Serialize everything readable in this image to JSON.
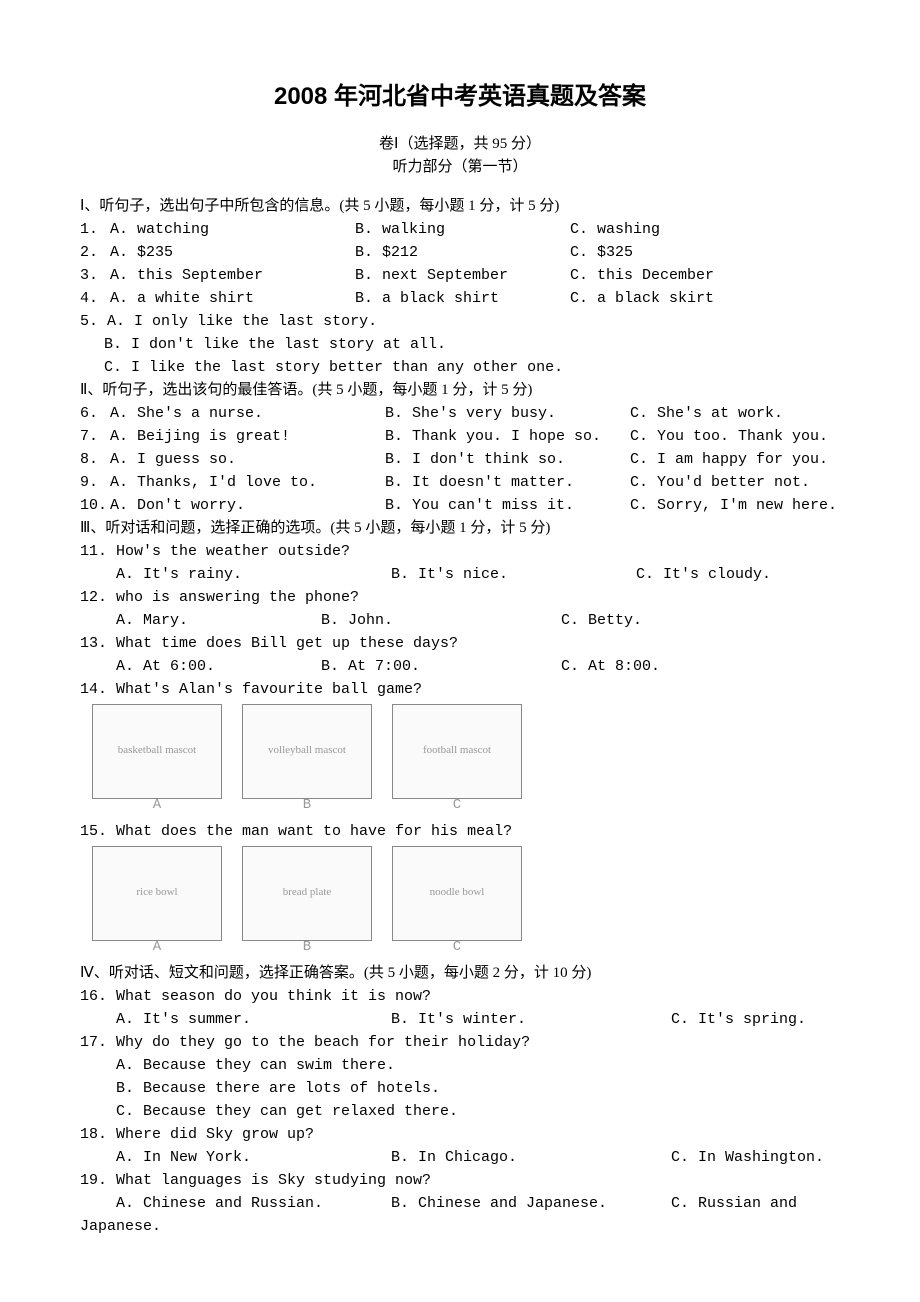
{
  "title": "2008 年河北省中考英语真题及答案",
  "subtitle1": "卷Ⅰ（选择题，共 95 分）",
  "subtitle2": "听力部分（第一节）",
  "section1": {
    "header": "Ⅰ、听句子，选出句子中所包含的信息。(共 5 小题，每小题 1 分，计 5 分)",
    "questions": [
      {
        "num": "1.",
        "a": "A. watching",
        "b": "B. walking",
        "c": "C. washing"
      },
      {
        "num": "2.",
        "a": "A. $235",
        "b": "B. $212",
        "c": "C. $325"
      },
      {
        "num": "3.",
        "a": "A. this September",
        "b": "B. next September",
        "c": "C. this December"
      },
      {
        "num": "4.",
        "a": "A. a white shirt",
        "b": "B. a black shirt",
        "c": "C. a black skirt"
      }
    ],
    "q5": {
      "num": "5.",
      "a": "A. I only like the last story.",
      "b": "B. I don't like the last story at all.",
      "c": "C. I like the last story better than any other one."
    }
  },
  "section2": {
    "header": "Ⅱ、听句子，选出该句的最佳答语。(共 5 小题，每小题 1 分，计 5 分)",
    "questions": [
      {
        "num": "6.",
        "a": "A. She's a nurse.",
        "b": "B. She's very busy.",
        "c": "C. She's at work."
      },
      {
        "num": "7.",
        "a": "A. Beijing is great!",
        "b": "B. Thank you. I hope so.",
        "c": "C. You too. Thank you."
      },
      {
        "num": "8.",
        "a": "A. I guess so.",
        "b": "B. I don't think so.",
        "c": "C. I am happy for you."
      },
      {
        "num": "9.",
        "a": "A. Thanks, I'd love to.",
        "b": "B. It doesn't matter.",
        "c": "C. You'd better not."
      },
      {
        "num": "10.",
        "a": "A. Don't worry.",
        "b": "B. You can't miss it.",
        "c": "C. Sorry, I'm new here."
      }
    ]
  },
  "section3": {
    "header": "Ⅲ、听对话和问题，选择正确的选项。(共 5 小题，每小题 1 分，计 5 分)",
    "q11": {
      "text": "11. How's the weather outside?",
      "a": "A. It's rainy.",
      "b": "B. It's nice.",
      "c": "C. It's cloudy."
    },
    "q12": {
      "text": "12. who is answering the phone?",
      "a": "A. Mary.",
      "b": "B. John.",
      "c": "C. Betty."
    },
    "q13": {
      "text": "13. What time does Bill get up these days?",
      "a": "A. At 6:00.",
      "b": "B. At 7:00.",
      "c": "C. At 8:00."
    },
    "q14": {
      "text": "14. What's Alan's favourite ball game?",
      "images": [
        "basketball mascot",
        "volleyball mascot",
        "football mascot"
      ],
      "labels": [
        "A",
        "B",
        "C"
      ]
    },
    "q15": {
      "text": "15. What does the man want to have for his meal?",
      "images": [
        "rice bowl",
        "bread plate",
        "noodle bowl"
      ],
      "labels": [
        "A",
        "B",
        "C"
      ]
    }
  },
  "section4": {
    "header": "Ⅳ、听对话、短文和问题，选择正确答案。(共 5 小题，每小题 2 分，计 10 分)",
    "q16": {
      "text": "16. What season do you think it is now?",
      "a": "A. It's summer.",
      "b": "B. It's winter.",
      "c": "C. It's spring."
    },
    "q17": {
      "text": "17. Why do they go to the beach for their holiday?",
      "a": "A. Because they can swim there.",
      "b": "B. Because there are lots of hotels.",
      "c": "C. Because they can get relaxed there."
    },
    "q18": {
      "text": "18. Where did Sky grow up?",
      "a": "A. In New York.",
      "b": "B. In Chicago.",
      "c": "C. In Washington."
    },
    "q19": {
      "text": "19. What languages is Sky studying now?",
      "a": "A. Chinese and Russian.",
      "b": "B. Chinese and Japanese.",
      "c": "C. Russian and",
      "cont": "Japanese."
    }
  }
}
